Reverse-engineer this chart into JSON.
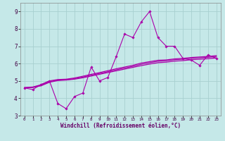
{
  "xlabel": "Windchill (Refroidissement éolien,°C)",
  "background_color": "#c5e8e8",
  "grid_color": "#a8d0d0",
  "line_color": "#aa00aa",
  "x": [
    0,
    1,
    2,
    3,
    4,
    5,
    6,
    7,
    8,
    9,
    10,
    11,
    12,
    13,
    14,
    15,
    16,
    17,
    18,
    19,
    20,
    21,
    22,
    23
  ],
  "y_main": [
    4.6,
    4.5,
    4.8,
    5.0,
    3.7,
    3.4,
    4.1,
    4.3,
    5.8,
    5.0,
    5.2,
    6.4,
    7.7,
    7.5,
    8.4,
    9.0,
    7.5,
    7.0,
    7.0,
    6.3,
    6.2,
    5.9,
    6.5,
    6.3
  ],
  "y_line1": [
    4.6,
    4.62,
    4.72,
    4.92,
    5.02,
    5.05,
    5.1,
    5.18,
    5.28,
    5.38,
    5.48,
    5.58,
    5.68,
    5.78,
    5.88,
    5.97,
    6.05,
    6.08,
    6.14,
    6.17,
    6.22,
    6.25,
    6.28,
    6.32
  ],
  "y_line2": [
    4.6,
    4.63,
    4.75,
    4.96,
    5.05,
    5.07,
    5.13,
    5.22,
    5.33,
    5.43,
    5.53,
    5.64,
    5.74,
    5.84,
    5.96,
    6.05,
    6.13,
    6.16,
    6.22,
    6.25,
    6.3,
    6.33,
    6.36,
    6.4
  ],
  "y_line3": [
    4.62,
    4.65,
    4.78,
    5.0,
    5.08,
    5.1,
    5.17,
    5.27,
    5.38,
    5.48,
    5.59,
    5.7,
    5.8,
    5.9,
    6.03,
    6.11,
    6.19,
    6.21,
    6.27,
    6.3,
    6.35,
    6.38,
    6.41,
    6.46
  ],
  "xlim": [
    -0.5,
    23.5
  ],
  "ylim": [
    3.0,
    9.5
  ],
  "yticks": [
    3,
    4,
    5,
    6,
    7,
    8,
    9
  ],
  "xticks": [
    0,
    1,
    2,
    3,
    4,
    5,
    6,
    7,
    8,
    9,
    10,
    11,
    12,
    13,
    14,
    15,
    16,
    17,
    18,
    19,
    20,
    21,
    22,
    23
  ],
  "xlabel_fontsize": 5.5,
  "xlabel_color": "#660066"
}
